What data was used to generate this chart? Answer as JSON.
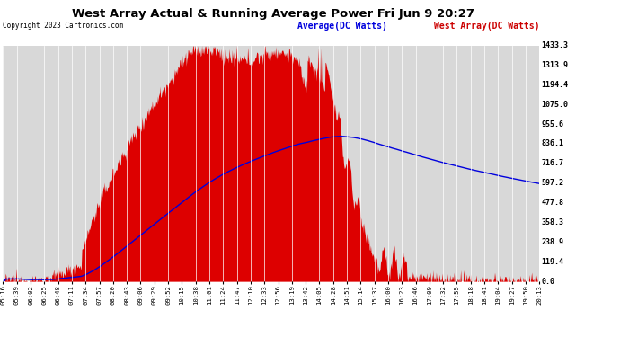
{
  "title": "West Array Actual & Running Average Power Fri Jun 9 20:27",
  "copyright": "Copyright 2023 Cartronics.com",
  "legend_avg": "Average(DC Watts)",
  "legend_west": "West Array(DC Watts)",
  "yticks": [
    0.0,
    119.4,
    238.9,
    358.3,
    477.8,
    597.2,
    716.7,
    836.1,
    955.6,
    1075.0,
    1194.4,
    1313.9,
    1433.3
  ],
  "ymax": 1433.3,
  "ymin": 0.0,
  "bg_color": "#ffffff",
  "plot_bg_color": "#d8d8d8",
  "grid_color": "#ffffff",
  "bar_color": "#dd0000",
  "avg_color": "#0000dd",
  "west_legend_color": "#cc0000",
  "title_color": "#000000",
  "copyright_color": "#000000",
  "xtick_labels": [
    "05:16",
    "05:39",
    "06:02",
    "06:25",
    "06:48",
    "07:11",
    "07:34",
    "07:57",
    "08:20",
    "08:43",
    "09:06",
    "09:29",
    "09:52",
    "10:15",
    "10:38",
    "11:01",
    "11:24",
    "11:47",
    "12:10",
    "12:33",
    "12:56",
    "13:19",
    "13:42",
    "14:05",
    "14:28",
    "14:51",
    "15:14",
    "15:37",
    "16:00",
    "16:23",
    "16:46",
    "17:09",
    "17:32",
    "17:55",
    "18:18",
    "18:41",
    "19:04",
    "19:27",
    "19:50",
    "20:13"
  ]
}
